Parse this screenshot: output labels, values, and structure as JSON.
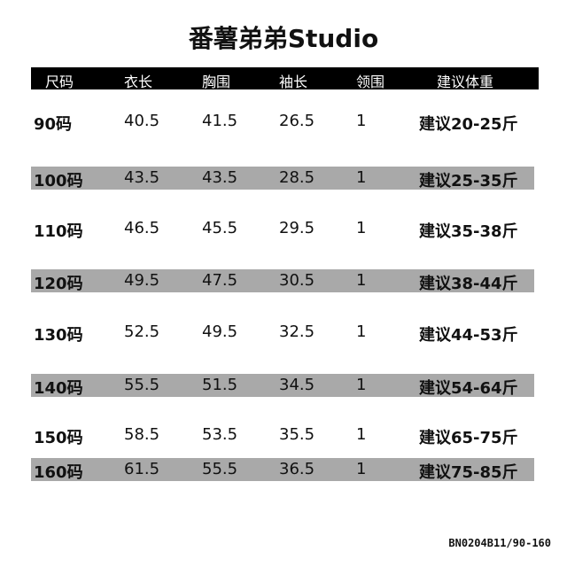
{
  "title": "番薯弟弟Studio",
  "headers": [
    "尺码",
    "衣长",
    "胸围",
    "袖长",
    "领围",
    "建议体重"
  ],
  "rows": [
    [
      "90码",
      "40.5",
      "41.5",
      "26.5",
      "1",
      "建议20-25斤"
    ],
    [
      "100码",
      "43.5",
      "43.5",
      "28.5",
      "1",
      "建议25-35斤"
    ],
    [
      "110码",
      "46.5",
      "45.5",
      "29.5",
      "1",
      "建议35-38斤"
    ],
    [
      "120码",
      "49.5",
      "47.5",
      "30.5",
      "1",
      "建议38-44斤"
    ],
    [
      "130码",
      "52.5",
      "49.5",
      "32.5",
      "1",
      "建议44-53斤"
    ],
    [
      "140码",
      "55.5",
      "51.5",
      "34.5",
      "1",
      "建议54-64斤"
    ],
    [
      "150码",
      "58.5",
      "53.5",
      "35.5",
      "1",
      "建议65-75斤"
    ],
    [
      "160码",
      "61.5",
      "55.5",
      "36.5",
      "1",
      "建议75-85斤"
    ]
  ],
  "product_code": "BN0204B11/90-160",
  "colors": {
    "header_bg": "#000000",
    "stripe_bg": "#a9a9a9"
  }
}
